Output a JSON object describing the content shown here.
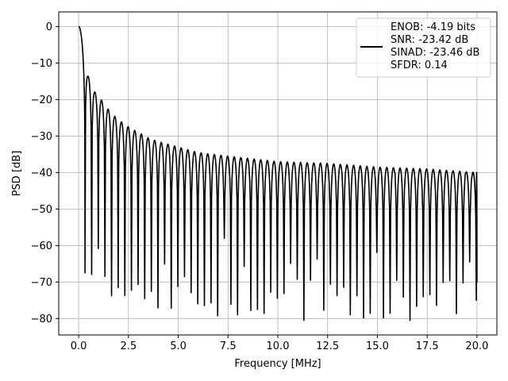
{
  "chart_data": {
    "type": "line",
    "title": "",
    "xlabel": "Frequency [MHz]",
    "ylabel": "PSD [dB]",
    "xlim": [
      -1.0,
      21.0
    ],
    "ylim": [
      -84.5,
      4.0
    ],
    "xticks": [
      0.0,
      2.5,
      5.0,
      7.5,
      10.0,
      12.5,
      15.0,
      17.5,
      20.0
    ],
    "xtick_labels": [
      "0.0",
      "2.5",
      "5.0",
      "7.5",
      "10.0",
      "12.5",
      "15.0",
      "17.5",
      "20.0"
    ],
    "yticks": [
      0,
      -10,
      -20,
      -30,
      -40,
      -50,
      -60,
      -70,
      -80
    ],
    "ytick_labels": [
      "0",
      "−10",
      "−20",
      "−30",
      "−40",
      "−50",
      "−60",
      "−70",
      "−80"
    ],
    "grid": true,
    "legend_position": "top-right",
    "legend_lines": [
      "ENOB: -4.19 bits",
      "SNR: -23.42 dB",
      "SINAD: -23.46 dB",
      "SFDR: 0.14"
    ],
    "series_color": "#000000",
    "lobes": {
      "first_null": 0.32,
      "spacing": 0.333,
      "last_freq": 20.0,
      "peaks": [
        [
          0.0,
          0.0
        ],
        [
          0.45,
          -13.2
        ],
        [
          0.8,
          -17.8
        ],
        [
          1.2,
          -20.5
        ],
        [
          1.6,
          -23.5
        ],
        [
          2.0,
          -25.5
        ],
        [
          2.5,
          -27.5
        ],
        [
          3.0,
          -29.0
        ],
        [
          3.5,
          -30.5
        ],
        [
          4.0,
          -31.5
        ],
        [
          5.0,
          -33.0
        ],
        [
          6.0,
          -34.5
        ],
        [
          7.5,
          -35.5
        ],
        [
          10.0,
          -37.0
        ],
        [
          12.5,
          -37.5
        ],
        [
          15.0,
          -38.5
        ],
        [
          17.5,
          -39.0
        ],
        [
          20.0,
          -40.0
        ]
      ],
      "nulls": [
        [
          0.32,
          -67.5
        ],
        [
          0.65,
          -68.0
        ],
        [
          0.95,
          -60.0
        ],
        [
          1.28,
          -67.5
        ],
        [
          1.57,
          -74.5
        ],
        [
          1.9,
          -71.5
        ],
        [
          2.2,
          -71.5
        ],
        [
          2.5,
          -77.0
        ],
        [
          2.85,
          -66.0
        ],
        [
          3.18,
          -77.5
        ],
        [
          3.5,
          -70.5
        ],
        [
          4.05,
          -78.0
        ],
        [
          5.5,
          -74.5
        ],
        [
          7.3,
          -74.0
        ],
        [
          9.1,
          -79.0
        ],
        [
          10.0,
          -76.0
        ],
        [
          12.2,
          -78.0
        ],
        [
          12.5,
          -80.5
        ],
        [
          13.2,
          -80.5
        ],
        [
          14.4,
          -75.0
        ],
        [
          17.6,
          -77.0
        ],
        [
          18.8,
          -78.0
        ],
        [
          19.8,
          -72.0
        ]
      ],
      "floor_start_freq": 8.0,
      "floor_level": -45.0
    }
  }
}
